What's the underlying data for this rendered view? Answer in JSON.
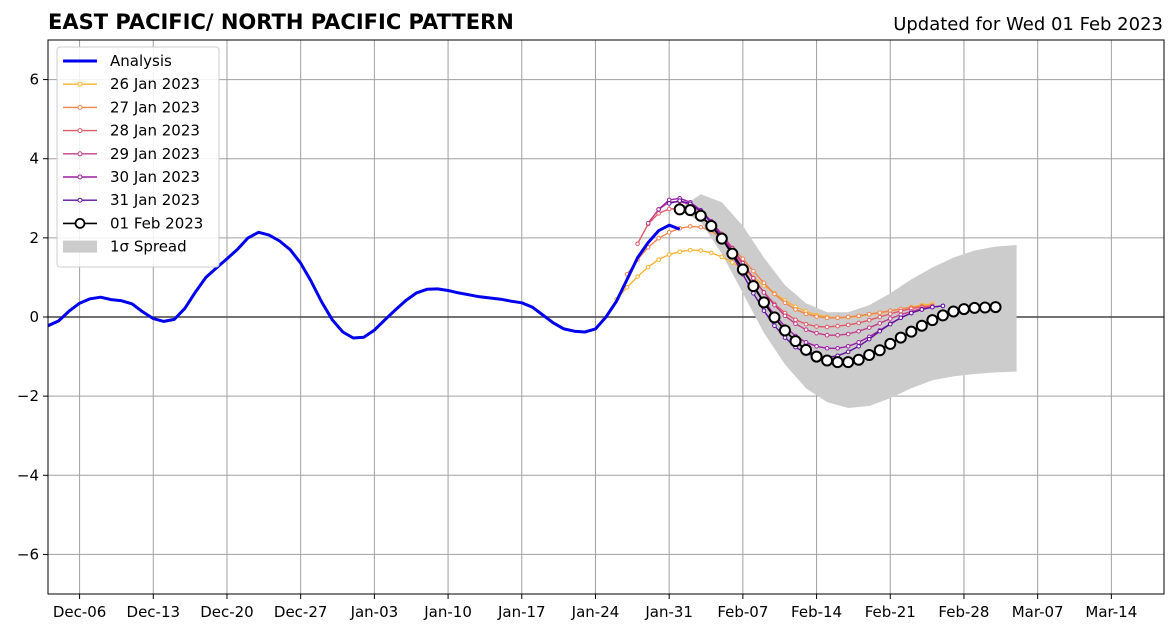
{
  "chart_data": {
    "type": "line",
    "title": "EAST PACIFIC/ NORTH PACIFIC PATTERN",
    "subtitle": "Updated for Wed 01 Feb 2023",
    "xlabel": "",
    "ylabel": "",
    "x_axis_type": "date",
    "xlim": [
      "2022-12-03",
      "2023-03-19"
    ],
    "ylim": [
      -7,
      7
    ],
    "grid": true,
    "legend_position": "top-left",
    "x_ticks": [
      {
        "date": "2022-12-06",
        "label": "Dec-06"
      },
      {
        "date": "2022-12-13",
        "label": "Dec-13"
      },
      {
        "date": "2022-12-20",
        "label": "Dec-20"
      },
      {
        "date": "2022-12-27",
        "label": "Dec-27"
      },
      {
        "date": "2023-01-03",
        "label": "Jan-03"
      },
      {
        "date": "2023-01-10",
        "label": "Jan-10"
      },
      {
        "date": "2023-01-17",
        "label": "Jan-17"
      },
      {
        "date": "2023-01-24",
        "label": "Jan-24"
      },
      {
        "date": "2023-01-31",
        "label": "Jan-31"
      },
      {
        "date": "2023-02-07",
        "label": "Feb-07"
      },
      {
        "date": "2023-02-14",
        "label": "Feb-14"
      },
      {
        "date": "2023-02-21",
        "label": "Feb-21"
      },
      {
        "date": "2023-02-28",
        "label": "Feb-28"
      },
      {
        "date": "2023-03-07",
        "label": "Mar-07"
      },
      {
        "date": "2023-03-14",
        "label": "Mar-14"
      }
    ],
    "y_ticks": [
      {
        "value": -6,
        "label": "−6"
      },
      {
        "value": -4,
        "label": "−4"
      },
      {
        "value": -2,
        "label": "−2"
      },
      {
        "value": 0,
        "label": "0"
      },
      {
        "value": 2,
        "label": "2"
      },
      {
        "value": 4,
        "label": "4"
      },
      {
        "value": 6,
        "label": "6"
      }
    ],
    "analysis": {
      "name": "Analysis",
      "color": "#0000ee",
      "points": [
        [
          "2022-12-03",
          -0.22
        ],
        [
          "2022-12-04",
          -0.1
        ],
        [
          "2022-12-05",
          0.15
        ],
        [
          "2022-12-06",
          0.35
        ],
        [
          "2022-12-07",
          0.46
        ],
        [
          "2022-12-08",
          0.5
        ],
        [
          "2022-12-09",
          0.44
        ],
        [
          "2022-12-10",
          0.41
        ],
        [
          "2022-12-11",
          0.33
        ],
        [
          "2022-12-12",
          0.13
        ],
        [
          "2022-12-13",
          -0.04
        ],
        [
          "2022-12-14",
          -0.11
        ],
        [
          "2022-12-15",
          -0.06
        ],
        [
          "2022-12-16",
          0.22
        ],
        [
          "2022-12-17",
          0.63
        ],
        [
          "2022-12-18",
          1.0
        ],
        [
          "2022-12-19",
          1.24
        ],
        [
          "2022-12-20",
          1.47
        ],
        [
          "2022-12-21",
          1.71
        ],
        [
          "2022-12-22",
          2.0
        ],
        [
          "2022-12-23",
          2.14
        ],
        [
          "2022-12-24",
          2.07
        ],
        [
          "2022-12-25",
          1.92
        ],
        [
          "2022-12-26",
          1.7
        ],
        [
          "2022-12-27",
          1.36
        ],
        [
          "2022-12-28",
          0.9
        ],
        [
          "2022-12-29",
          0.38
        ],
        [
          "2022-12-30",
          -0.07
        ],
        [
          "2022-12-31",
          -0.38
        ],
        [
          "2023-01-01",
          -0.53
        ],
        [
          "2023-01-02",
          -0.51
        ],
        [
          "2023-01-03",
          -0.33
        ],
        [
          "2023-01-04",
          -0.07
        ],
        [
          "2023-01-05",
          0.18
        ],
        [
          "2023-01-06",
          0.42
        ],
        [
          "2023-01-07",
          0.61
        ],
        [
          "2023-01-08",
          0.7
        ],
        [
          "2023-01-09",
          0.71
        ],
        [
          "2023-01-10",
          0.67
        ],
        [
          "2023-01-11",
          0.61
        ],
        [
          "2023-01-12",
          0.56
        ],
        [
          "2023-01-13",
          0.51
        ],
        [
          "2023-01-14",
          0.48
        ],
        [
          "2023-01-15",
          0.45
        ],
        [
          "2023-01-16",
          0.4
        ],
        [
          "2023-01-17",
          0.36
        ],
        [
          "2023-01-18",
          0.25
        ],
        [
          "2023-01-19",
          0.05
        ],
        [
          "2023-01-20",
          -0.15
        ],
        [
          "2023-01-21",
          -0.3
        ],
        [
          "2023-01-22",
          -0.36
        ],
        [
          "2023-01-23",
          -0.38
        ],
        [
          "2023-01-24",
          -0.3
        ],
        [
          "2023-01-25",
          0.0
        ],
        [
          "2023-01-26",
          0.4
        ],
        [
          "2023-01-27",
          0.95
        ],
        [
          "2023-01-28",
          1.5
        ],
        [
          "2023-01-29",
          1.88
        ],
        [
          "2023-01-30",
          2.18
        ],
        [
          "2023-01-31",
          2.32
        ],
        [
          "2023-02-01",
          2.22
        ]
      ]
    },
    "series": [
      {
        "name": "26 Jan 2023",
        "color": "#fdb231",
        "start": "2023-01-26",
        "values": [
          0.45,
          0.75,
          1.02,
          1.26,
          1.45,
          1.58,
          1.65,
          1.69,
          1.68,
          1.62,
          1.52,
          1.38,
          1.2,
          1.0,
          0.8,
          0.6,
          0.42,
          0.26,
          0.14,
          0.05,
          0.0,
          -0.02,
          -0.01,
          0.02,
          0.06,
          0.1,
          0.15,
          0.2,
          0.25,
          0.3,
          0.33
        ]
      },
      {
        "name": "27 Jan 2023",
        "color": "#f1844d",
        "start": "2023-01-27",
        "values": [
          1.08,
          1.45,
          1.76,
          1.99,
          2.14,
          2.24,
          2.29,
          2.27,
          2.17,
          1.99,
          1.75,
          1.47,
          1.16,
          0.86,
          0.58,
          0.36,
          0.19,
          0.08,
          0.01,
          -0.02,
          -0.02,
          0.0,
          0.03,
          0.07,
          0.11,
          0.16,
          0.2,
          0.24,
          0.27,
          0.29
        ]
      },
      {
        "name": "28 Jan 2023",
        "color": "#e15a6a",
        "start": "2023-01-28",
        "values": [
          1.85,
          2.35,
          2.62,
          2.73,
          2.74,
          2.67,
          2.52,
          2.3,
          2.02,
          1.69,
          1.33,
          0.97,
          0.63,
          0.33,
          0.1,
          -0.07,
          -0.18,
          -0.24,
          -0.25,
          -0.23,
          -0.2,
          -0.15,
          -0.08,
          0.0,
          0.08,
          0.15,
          0.21,
          0.25,
          0.28
        ]
      },
      {
        "name": "29 Jan 2023",
        "color": "#c23c8a",
        "start": "2023-01-29",
        "values": [
          2.37,
          2.72,
          2.9,
          2.92,
          2.84,
          2.66,
          2.41,
          2.1,
          1.74,
          1.36,
          0.98,
          0.62,
          0.3,
          0.03,
          -0.17,
          -0.32,
          -0.41,
          -0.46,
          -0.46,
          -0.43,
          -0.36,
          -0.27,
          -0.16,
          -0.04,
          0.06,
          0.14,
          0.21,
          0.25
        ]
      },
      {
        "name": "30 Jan 2023",
        "color": "#9b1fa6",
        "start": "2023-01-30",
        "values": [
          2.72,
          2.96,
          3.0,
          2.9,
          2.7,
          2.42,
          2.06,
          1.66,
          1.22,
          0.8,
          0.4,
          0.06,
          -0.24,
          -0.48,
          -0.64,
          -0.74,
          -0.79,
          -0.79,
          -0.74,
          -0.64,
          -0.5,
          -0.34,
          -0.17,
          -0.02,
          0.1,
          0.19,
          0.25,
          0.28
        ]
      },
      {
        "name": "31 Jan 2023",
        "color": "#6010a0",
        "start": "2023-01-31",
        "values": [
          2.87,
          2.94,
          2.86,
          2.68,
          2.38,
          2.0,
          1.56,
          1.08,
          0.6,
          0.16,
          -0.22,
          -0.52,
          -0.76,
          -0.92,
          -1.0,
          -1.02,
          -0.98,
          -0.88,
          -0.74,
          -0.56,
          -0.36,
          -0.18,
          -0.02,
          0.1,
          0.19,
          0.25,
          0.28
        ]
      },
      {
        "name": "01 Feb 2023",
        "color": "#000000",
        "marker": "open-circle",
        "start": "2023-02-01",
        "values": [
          2.72,
          2.7,
          2.56,
          2.3,
          1.98,
          1.6,
          1.2,
          0.78,
          0.37,
          -0.01,
          -0.34,
          -0.61,
          -0.83,
          -1.0,
          -1.1,
          -1.14,
          -1.14,
          -1.08,
          -0.96,
          -0.84,
          -0.68,
          -0.52,
          -0.37,
          -0.22,
          -0.08,
          0.04,
          0.14,
          0.2,
          0.23,
          0.24,
          0.25
        ]
      }
    ],
    "spread": {
      "name": "1σ Spread",
      "color": "#cccccc",
      "points": [
        [
          "2023-02-01",
          2.75,
          2.7
        ],
        [
          "2023-02-03",
          3.1,
          2.4
        ],
        [
          "2023-02-05",
          2.9,
          1.6
        ],
        [
          "2023-02-07",
          2.3,
          0.6
        ],
        [
          "2023-02-09",
          1.5,
          -0.4
        ],
        [
          "2023-02-11",
          0.8,
          -1.2
        ],
        [
          "2023-02-13",
          0.35,
          -1.8
        ],
        [
          "2023-02-15",
          0.12,
          -2.15
        ],
        [
          "2023-02-17",
          0.12,
          -2.3
        ],
        [
          "2023-02-19",
          0.3,
          -2.25
        ],
        [
          "2023-02-21",
          0.6,
          -2.05
        ],
        [
          "2023-02-23",
          0.95,
          -1.8
        ],
        [
          "2023-02-25",
          1.25,
          -1.6
        ],
        [
          "2023-02-27",
          1.5,
          -1.5
        ],
        [
          "2023-03-01",
          1.68,
          -1.44
        ],
        [
          "2023-03-03",
          1.78,
          -1.4
        ],
        [
          "2023-03-05",
          1.82,
          -1.38
        ]
      ]
    },
    "legend": [
      {
        "label": "Analysis",
        "color": "#0000ee",
        "style": "thick-line"
      },
      {
        "label": "26 Jan 2023",
        "color": "#fdb231",
        "style": "line-dot"
      },
      {
        "label": "27 Jan 2023",
        "color": "#f1844d",
        "style": "line-dot"
      },
      {
        "label": "28 Jan 2023",
        "color": "#e15a6a",
        "style": "line-dot"
      },
      {
        "label": "29 Jan 2023",
        "color": "#c23c8a",
        "style": "line-dot"
      },
      {
        "label": "30 Jan 2023",
        "color": "#9b1fa6",
        "style": "line-dot"
      },
      {
        "label": "31 Jan 2023",
        "color": "#6010a0",
        "style": "line-dot"
      },
      {
        "label": "01 Feb 2023",
        "color": "#000000",
        "style": "line-open-circle"
      },
      {
        "label": "1σ Spread",
        "color": "#cccccc",
        "style": "patch"
      }
    ]
  }
}
